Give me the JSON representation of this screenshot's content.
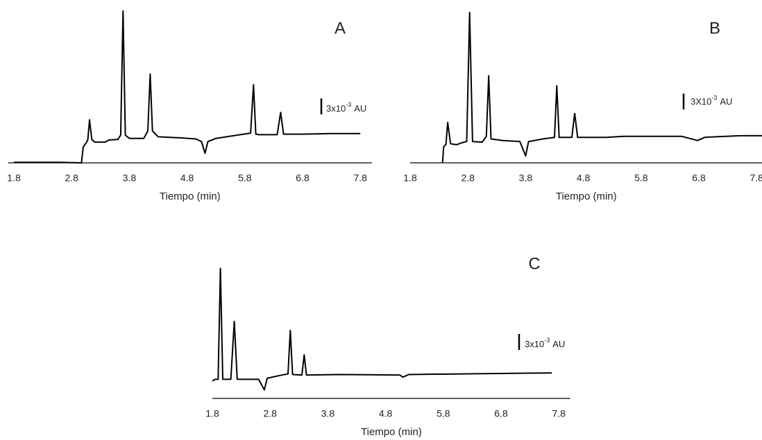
{
  "chart_data": [
    {
      "type": "line",
      "title": "A",
      "x_label": "Tiempo (min)",
      "annotation": {
        "base": "3x10",
        "exponent": "-3",
        "unit": "AU"
      },
      "scale_bar": 3,
      "xlim": [
        1.7,
        8.0
      ],
      "xticks": [
        1.8,
        2.8,
        3.8,
        4.8,
        5.8,
        6.8,
        7.8
      ],
      "ylim": [
        0,
        30
      ],
      "grid": false,
      "color": "#000000",
      "x": [
        1.8,
        2.6,
        2.97,
        3.0,
        3.04,
        3.08,
        3.11,
        3.15,
        3.2,
        3.38,
        3.45,
        3.6,
        3.65,
        3.69,
        3.73,
        3.8,
        4.05,
        4.12,
        4.16,
        4.2,
        4.3,
        4.7,
        4.95,
        5.05,
        5.11,
        5.16,
        5.3,
        5.6,
        5.9,
        5.95,
        5.99,
        6.05,
        6.36,
        6.42,
        6.47,
        6.8,
        7.3,
        7.8
      ],
      "values": [
        0.1,
        0.1,
        0,
        3.0,
        3.6,
        4.3,
        8.1,
        4.4,
        3.9,
        3.9,
        4.3,
        4.4,
        5.2,
        28.6,
        5.2,
        4.6,
        4.6,
        6.0,
        16.7,
        6.0,
        4.9,
        4.7,
        4.5,
        4.0,
        1.8,
        4.0,
        4.6,
        5.1,
        5.6,
        14.7,
        5.4,
        5.3,
        5.3,
        9.5,
        5.4,
        5.4,
        5.5,
        5.5
      ]
    },
    {
      "type": "line",
      "title": "B",
      "x_label": "Tiempo (min)",
      "annotation": {
        "base": "3X10",
        "exponent": "-3",
        "unit": "AU"
      },
      "scale_bar": 3,
      "xlim": [
        1.8,
        7.9
      ],
      "xticks": [
        1.8,
        2.8,
        3.8,
        4.8,
        5.8,
        6.8,
        7.8
      ],
      "ylim": [
        0,
        30
      ],
      "grid": false,
      "color": "#000000",
      "x": [
        2.36,
        2.38,
        2.42,
        2.45,
        2.5,
        2.6,
        2.7,
        2.78,
        2.83,
        2.88,
        3.05,
        3.12,
        3.16,
        3.2,
        3.4,
        3.7,
        3.8,
        3.85,
        4.1,
        4.3,
        4.34,
        4.38,
        4.6,
        4.65,
        4.7,
        5.2,
        5.5,
        6.5,
        6.78,
        6.9,
        7.5,
        7.9
      ],
      "values": [
        0,
        3.0,
        3.5,
        7.6,
        3.6,
        3.4,
        3.8,
        4.0,
        28.3,
        4.0,
        3.9,
        5.0,
        16.4,
        4.5,
        4.2,
        4.0,
        1.3,
        4.0,
        4.5,
        4.8,
        14.5,
        4.8,
        4.8,
        9.3,
        4.8,
        4.8,
        5.0,
        5.0,
        4.2,
        4.8,
        5.1,
        5.1
      ]
    },
    {
      "type": "line",
      "title": "C",
      "x_label": "Tiempo (min)",
      "annotation": {
        "base": "3x10",
        "exponent": "-3",
        "unit": "AU"
      },
      "scale_bar": 3,
      "xlim": [
        1.8,
        8.0
      ],
      "xticks": [
        1.8,
        2.8,
        3.8,
        4.8,
        5.8,
        6.8,
        7.8
      ],
      "ylim": [
        0,
        30
      ],
      "grid": false,
      "color": "#000000",
      "x": [
        1.8,
        1.85,
        1.9,
        1.94,
        1.98,
        2.12,
        2.18,
        2.23,
        2.6,
        2.7,
        2.75,
        3.0,
        3.11,
        3.15,
        3.19,
        3.35,
        3.39,
        3.43,
        4.0,
        5.05,
        5.1,
        5.2,
        6.0,
        7.68
      ],
      "values": [
        3.3,
        3.6,
        3.6,
        24.5,
        3.6,
        3.6,
        14.5,
        3.6,
        3.6,
        1.6,
        3.8,
        4.4,
        4.6,
        12.8,
        4.5,
        4.4,
        8.2,
        4.4,
        4.5,
        4.4,
        4.0,
        4.5,
        4.6,
        4.8
      ]
    }
  ]
}
